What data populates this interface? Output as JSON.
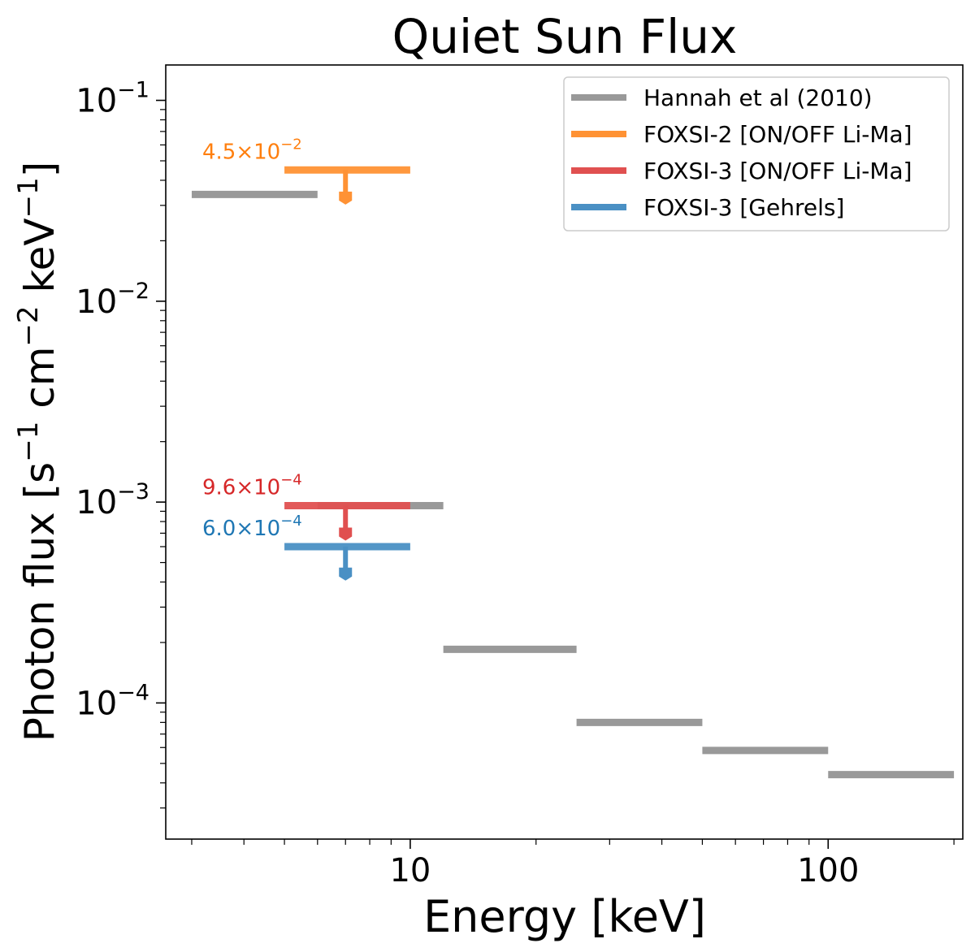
{
  "chart_data": {
    "type": "line",
    "title": "Quiet Sun Flux",
    "xlabel": "Energy [keV]",
    "ylabel": {
      "base": "Photon flux [s",
      "p1": "−1",
      "mid1": " cm",
      "p2": "−2",
      "mid2": " keV",
      "p3": "−1",
      "end": "]"
    },
    "xscale": "log",
    "yscale": "log",
    "xlim": [
      2.6,
      210
    ],
    "ylim": [
      2.1e-05,
      0.15
    ],
    "x_ticks": [
      {
        "value": 10,
        "label": "10"
      },
      {
        "value": 100,
        "label": "100"
      }
    ],
    "y_ticks": [
      {
        "value": 0.1,
        "base": "10",
        "exp": "−1"
      },
      {
        "value": 0.01,
        "base": "10",
        "exp": "−2"
      },
      {
        "value": 0.001,
        "base": "10",
        "exp": "−3"
      },
      {
        "value": 0.0001,
        "base": "10",
        "exp": "−4"
      }
    ],
    "legend_position": "top-right",
    "series": [
      {
        "name": "Hannah et al (2010)",
        "color": "#999999",
        "kind": "bins",
        "bins": [
          {
            "x0": 3,
            "x1": 6,
            "y": 0.034
          },
          {
            "x0": 6,
            "x1": 12,
            "y": 0.00096
          },
          {
            "x0": 12,
            "x1": 25,
            "y": 0.000185
          },
          {
            "x0": 25,
            "x1": 50,
            "y": 8e-05
          },
          {
            "x0": 50,
            "x1": 100,
            "y": 5.8e-05
          },
          {
            "x0": 100,
            "x1": 200,
            "y": 4.4e-05
          }
        ]
      },
      {
        "name": "FOXSI-2 [ON/OFF Li-Ma]",
        "color": "#ff9234",
        "kind": "upper_limit",
        "x0": 5,
        "x1": 10,
        "y": 0.045,
        "arrow_x": 7,
        "arrow_to": 0.032,
        "annotation": {
          "base": "4.5×10",
          "exp": "−2",
          "color": "#ff7f0e"
        }
      },
      {
        "name": "FOXSI-3 [ON/OFF Li-Ma]",
        "color": "#e05050",
        "kind": "upper_limit",
        "x0": 5,
        "x1": 10,
        "y": 0.00096,
        "arrow_x": 7,
        "arrow_to": 0.00068,
        "annotation": {
          "base": "9.6×10",
          "exp": "−4",
          "color": "#d62728"
        }
      },
      {
        "name": "FOXSI-3 [Gehrels]",
        "color": "#4a90c4",
        "kind": "upper_limit",
        "x0": 5,
        "x1": 10,
        "y": 0.0006,
        "arrow_x": 7,
        "arrow_to": 0.00043,
        "annotation": {
          "base": "6.0×10",
          "exp": "−4",
          "color": "#1f77b4"
        }
      }
    ]
  }
}
